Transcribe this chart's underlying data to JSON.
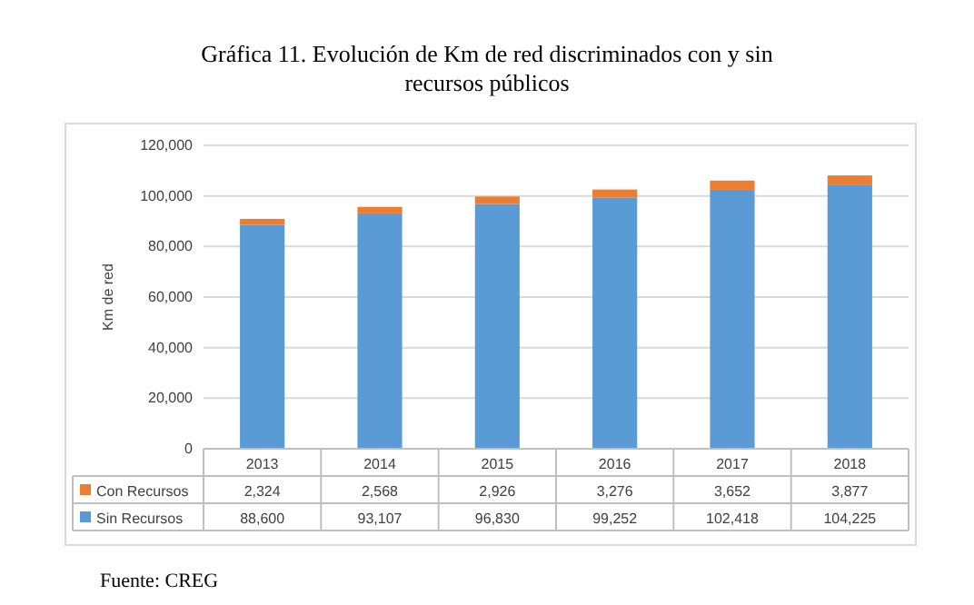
{
  "chart_data": {
    "type": "bar",
    "title": "Gráfica 11. Evolución de Km de red discriminados con y sin recursos públicos",
    "ylabel": "Km de red",
    "categories": [
      "2013",
      "2014",
      "2015",
      "2016",
      "2017",
      "2018"
    ],
    "series": [
      {
        "name": "Sin Recursos",
        "color": "#5b9bd5",
        "values": [
          88600,
          93107,
          96830,
          99252,
          102418,
          104225
        ],
        "value_labels": [
          "88,600",
          "93,107",
          "96,830",
          "99,252",
          "102,418",
          "104,225"
        ]
      },
      {
        "name": "Con Recursos",
        "color": "#ed7d31",
        "values": [
          2324,
          2568,
          2926,
          3276,
          3652,
          3877
        ],
        "value_labels": [
          "2,324",
          "2,568",
          "2,926",
          "3,276",
          "3,652",
          "3,877"
        ]
      }
    ],
    "stacked": true,
    "ylim": [
      0,
      120000
    ],
    "yticks": [
      {
        "value": 0,
        "label": "0"
      },
      {
        "value": 20000,
        "label": "20,000"
      },
      {
        "value": 40000,
        "label": "40,000"
      },
      {
        "value": 60000,
        "label": "60,000"
      },
      {
        "value": 80000,
        "label": "80,000"
      },
      {
        "value": 100000,
        "label": "100,000"
      },
      {
        "value": 120000,
        "label": "120,000"
      }
    ],
    "grid": "y",
    "legend": "bottom",
    "annotations": [
      "Fuente: CREG"
    ]
  }
}
